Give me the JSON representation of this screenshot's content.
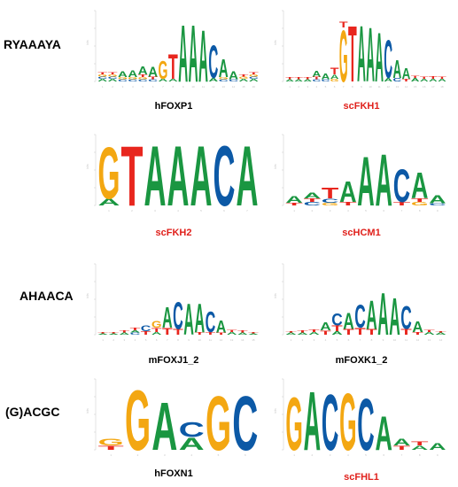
{
  "row_labels": [
    "RYAAAYA",
    "AHAACA",
    "(G)ACGC"
  ],
  "colors": {
    "A": "#1a9641",
    "C": "#0c59a6",
    "G": "#f3a712",
    "T": "#e8261e",
    "caption_red": "#e0201b"
  },
  "y_axis_label": "bits",
  "panels": [
    {
      "name": "hFOXP1",
      "caption_color": "black",
      "columns": [
        [
          [
            "A",
            0.04
          ],
          [
            "C",
            0.03
          ],
          [
            "G",
            0.03
          ],
          [
            "T",
            0.03
          ]
        ],
        [
          [
            "A",
            0.04
          ],
          [
            "C",
            0.03
          ],
          [
            "G",
            0.03
          ],
          [
            "T",
            0.03
          ]
        ],
        [
          [
            "C",
            0.03
          ],
          [
            "G",
            0.03
          ],
          [
            "A",
            0.08
          ]
        ],
        [
          [
            "C",
            0.03
          ],
          [
            "G",
            0.03
          ],
          [
            "A",
            0.1
          ]
        ],
        [
          [
            "C",
            0.03
          ],
          [
            "G",
            0.03
          ],
          [
            "T",
            0.04
          ],
          [
            "A",
            0.12
          ]
        ],
        [
          [
            "C",
            0.03
          ],
          [
            "T",
            0.04
          ],
          [
            "A",
            0.14
          ]
        ],
        [
          [
            "A",
            0.04
          ],
          [
            "G",
            0.26
          ]
        ],
        [
          [
            "A",
            0.04
          ],
          [
            "T",
            0.36
          ]
        ],
        [
          [
            "A",
            0.84
          ]
        ],
        [
          [
            "A",
            0.84
          ]
        ],
        [
          [
            "A",
            0.76
          ]
        ],
        [
          [
            "A",
            0.05
          ],
          [
            "C",
            0.48
          ]
        ],
        [
          [
            "C",
            0.03
          ],
          [
            "G",
            0.03
          ],
          [
            "A",
            0.26
          ]
        ],
        [
          [
            "C",
            0.03
          ],
          [
            "A",
            0.12
          ]
        ],
        [
          [
            "A",
            0.04
          ],
          [
            "G",
            0.03
          ],
          [
            "T",
            0.03
          ]
        ],
        [
          [
            "A",
            0.04
          ],
          [
            "C",
            0.03
          ],
          [
            "G",
            0.03
          ],
          [
            "T",
            0.03
          ]
        ]
      ]
    },
    {
      "name": "scFKH1",
      "caption_color": "red",
      "columns": [
        [
          [
            "A",
            0.03
          ],
          [
            "T",
            0.03
          ]
        ],
        [
          [
            "A",
            0.03
          ],
          [
            "T",
            0.03
          ]
        ],
        [
          [
            "A",
            0.03
          ],
          [
            "T",
            0.03
          ]
        ],
        [
          [
            "C",
            0.03
          ],
          [
            "T",
            0.04
          ],
          [
            "A",
            0.08
          ]
        ],
        [
          [
            "C",
            0.03
          ],
          [
            "A",
            0.08
          ]
        ],
        [
          [
            "G",
            0.04
          ],
          [
            "A",
            0.06
          ],
          [
            "T",
            0.1
          ]
        ],
        [
          [
            "G",
            0.76
          ],
          [
            "T",
            0.08
          ]
        ],
        [
          [
            "T",
            0.82
          ]
        ],
        [
          [
            "A",
            0.82
          ]
        ],
        [
          [
            "A",
            0.8
          ]
        ],
        [
          [
            "A",
            0.72
          ]
        ],
        [
          [
            "A",
            0.05
          ],
          [
            "C",
            0.56
          ]
        ],
        [
          [
            "C",
            0.05
          ],
          [
            "A",
            0.26
          ]
        ],
        [
          [
            "T",
            0.04
          ],
          [
            "A",
            0.16
          ]
        ],
        [
          [
            "A",
            0.05
          ],
          [
            "T",
            0.03
          ]
        ],
        [
          [
            "A",
            0.04
          ],
          [
            "T",
            0.03
          ]
        ],
        [
          [
            "A",
            0.04
          ],
          [
            "T",
            0.04
          ]
        ],
        [
          [
            "A",
            0.04
          ],
          [
            "T",
            0.03
          ]
        ]
      ]
    },
    {
      "name": "scFKH2",
      "caption_color": "red",
      "columns": [
        [
          [
            "A",
            0.1
          ],
          [
            "G",
            0.76
          ]
        ],
        [
          [
            "T",
            0.88
          ]
        ],
        [
          [
            "A",
            0.88
          ]
        ],
        [
          [
            "A",
            0.88
          ]
        ],
        [
          [
            "A",
            0.88
          ]
        ],
        [
          [
            "C",
            0.88
          ]
        ],
        [
          [
            "A",
            0.88
          ]
        ]
      ]
    },
    {
      "name": "scHCM1",
      "caption_color": "red",
      "columns": [
        [
          [
            "T",
            0.04
          ],
          [
            "A",
            0.1
          ]
        ],
        [
          [
            "C",
            0.05
          ],
          [
            "T",
            0.05
          ],
          [
            "A",
            0.08
          ]
        ],
        [
          [
            "G",
            0.04
          ],
          [
            "C",
            0.06
          ],
          [
            "T",
            0.16
          ]
        ],
        [
          [
            "T",
            0.05
          ],
          [
            "A",
            0.3
          ]
        ],
        [
          [
            "A",
            0.72
          ]
        ],
        [
          [
            "A",
            0.76
          ]
        ],
        [
          [
            "T",
            0.05
          ],
          [
            "C",
            0.48
          ]
        ],
        [
          [
            "G",
            0.05
          ],
          [
            "T",
            0.05
          ],
          [
            "A",
            0.38
          ]
        ],
        [
          [
            "C",
            0.03
          ],
          [
            "A",
            0.12
          ]
        ]
      ]
    },
    {
      "name": "mFOXJ1_2",
      "caption_color": "black",
      "columns": [
        [
          [
            "A",
            0.02
          ],
          [
            "T",
            0.02
          ]
        ],
        [
          [
            "A",
            0.02
          ],
          [
            "T",
            0.02
          ]
        ],
        [
          [
            "A",
            0.03
          ],
          [
            "T",
            0.03
          ]
        ],
        [
          [
            "C",
            0.03
          ],
          [
            "A",
            0.03
          ],
          [
            "T",
            0.04
          ]
        ],
        [
          [
            "T",
            0.05
          ],
          [
            "C",
            0.08
          ]
        ],
        [
          [
            "A",
            0.04
          ],
          [
            "T",
            0.06
          ],
          [
            "G",
            0.1
          ]
        ],
        [
          [
            "T",
            0.1
          ],
          [
            "A",
            0.3
          ]
        ],
        [
          [
            "T",
            0.08
          ],
          [
            "C",
            0.4
          ]
        ],
        [
          [
            "A",
            0.46
          ]
        ],
        [
          [
            "T",
            0.04
          ],
          [
            "A",
            0.42
          ]
        ],
        [
          [
            "T",
            0.04
          ],
          [
            "C",
            0.3
          ]
        ],
        [
          [
            "T",
            0.03
          ],
          [
            "A",
            0.18
          ]
        ],
        [
          [
            "A",
            0.04
          ],
          [
            "T",
            0.03
          ]
        ],
        [
          [
            "A",
            0.03
          ],
          [
            "T",
            0.03
          ]
        ],
        [
          [
            "A",
            0.02
          ],
          [
            "T",
            0.02
          ]
        ]
      ]
    },
    {
      "name": "mFOXK1_2",
      "caption_color": "black",
      "columns": [
        [
          [
            "A",
            0.03
          ],
          [
            "T",
            0.02
          ]
        ],
        [
          [
            "A",
            0.03
          ],
          [
            "T",
            0.03
          ]
        ],
        [
          [
            "A",
            0.04
          ],
          [
            "T",
            0.04
          ]
        ],
        [
          [
            "T",
            0.06
          ],
          [
            "A",
            0.12
          ]
        ],
        [
          [
            "A",
            0.05
          ],
          [
            "T",
            0.08
          ],
          [
            "C",
            0.18
          ]
        ],
        [
          [
            "T",
            0.08
          ],
          [
            "A",
            0.24
          ]
        ],
        [
          [
            "T",
            0.1
          ],
          [
            "C",
            0.34
          ]
        ],
        [
          [
            "T",
            0.08
          ],
          [
            "A",
            0.42
          ]
        ],
        [
          [
            "A",
            0.62
          ]
        ],
        [
          [
            "A",
            0.54
          ]
        ],
        [
          [
            "T",
            0.08
          ],
          [
            "C",
            0.34
          ]
        ],
        [
          [
            "T",
            0.04
          ],
          [
            "A",
            0.16
          ]
        ],
        [
          [
            "A",
            0.04
          ],
          [
            "T",
            0.03
          ]
        ],
        [
          [
            "A",
            0.03
          ],
          [
            "T",
            0.02
          ]
        ]
      ]
    },
    {
      "name": "hFOXN1",
      "caption_color": "black",
      "columns": [
        [
          [
            "T",
            0.06
          ],
          [
            "G",
            0.1
          ]
        ],
        [
          [
            "G",
            0.88
          ]
        ],
        [
          [
            "A",
            0.7
          ]
        ],
        [
          [
            "A",
            0.18
          ],
          [
            "C",
            0.22
          ]
        ],
        [
          [
            "G",
            0.8
          ]
        ],
        [
          [
            "C",
            0.8
          ]
        ]
      ]
    },
    {
      "name": "scFHL1",
      "caption_color": "red",
      "columns": [
        [
          [
            "G",
            0.78
          ]
        ],
        [
          [
            "A",
            0.86
          ]
        ],
        [
          [
            "C",
            0.82
          ]
        ],
        [
          [
            "G",
            0.84
          ]
        ],
        [
          [
            "C",
            0.76
          ]
        ],
        [
          [
            "A",
            0.5
          ]
        ],
        [
          [
            "T",
            0.06
          ],
          [
            "A",
            0.1
          ]
        ],
        [
          [
            "A",
            0.06
          ],
          [
            "T",
            0.06
          ]
        ],
        [
          [
            "A",
            0.1
          ]
        ]
      ]
    }
  ]
}
